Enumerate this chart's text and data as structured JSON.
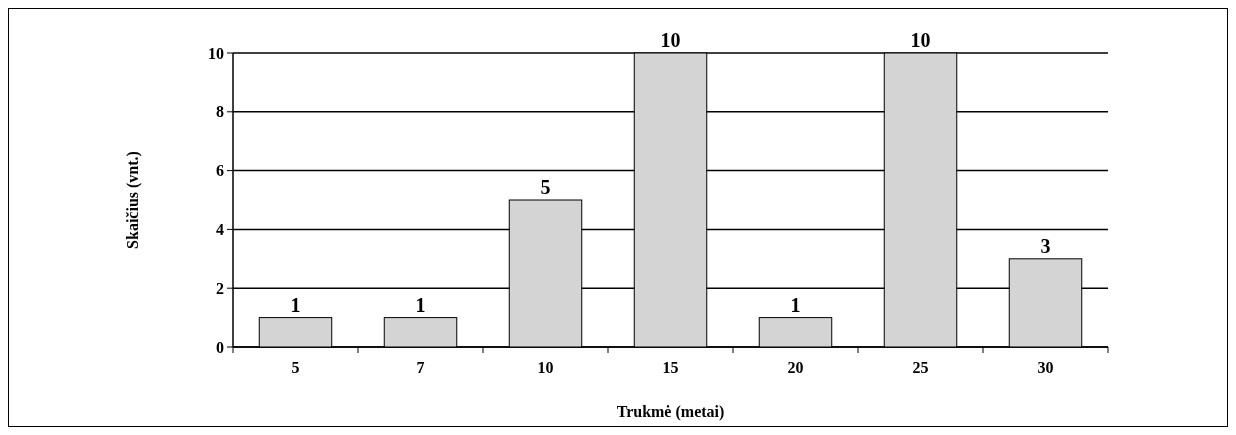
{
  "chart_data": {
    "type": "bar",
    "xlabel": "Trukmė (metai)",
    "ylabel": "Skaičius (vnt.)",
    "categories": [
      "5",
      "7",
      "10",
      "15",
      "20",
      "25",
      "30"
    ],
    "values": [
      1,
      1,
      5,
      10,
      1,
      10,
      3
    ],
    "color": "#d4d4d4",
    "ylim": [
      0,
      10
    ],
    "yticks": [
      0,
      2,
      4,
      6,
      8,
      10
    ],
    "grid": "y",
    "data_labels": true
  }
}
